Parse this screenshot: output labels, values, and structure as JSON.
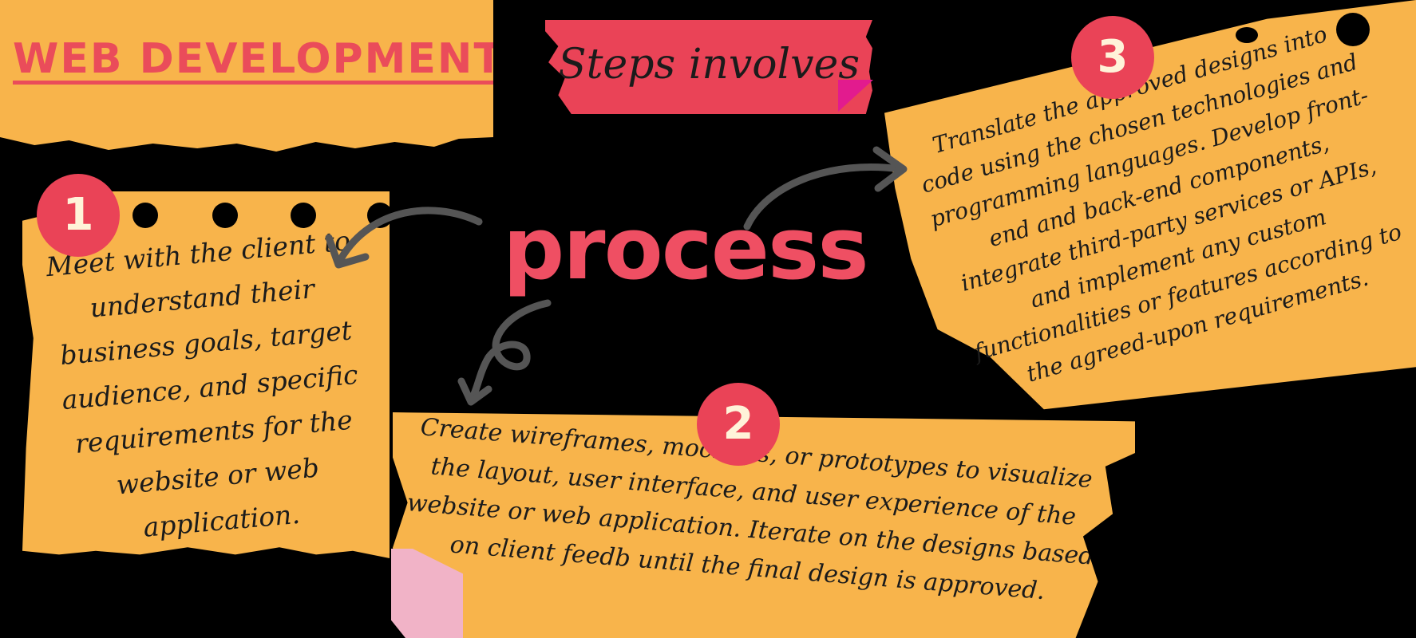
{
  "header": {
    "title": "WEB DEVELOPMENT"
  },
  "banner": {
    "text": "Steps involves"
  },
  "center": {
    "word": "process"
  },
  "steps": [
    {
      "number": "1",
      "text": "Meet with the client to understand their business goals, target audience, and specific requirements for the website or web application."
    },
    {
      "number": "2",
      "text": "Create wireframes, mockups, or prototypes to visualize the layout, user interface, and user experience of the website or web application. Iterate on the designs based on client feedb until the final design is approved."
    },
    {
      "number": "3",
      "text": "Translate the approved designs into code using the chosen technologies and programming languages. Develop front-end and back-end components, integrate third-party services or APIs, and implement any custom functionalities or features according to the agreed-upon requirements."
    }
  ],
  "colors": {
    "background": "#000000",
    "paper": "#f8b44b",
    "accent": "#ea4357",
    "magenta": "#e21b8e",
    "pink": "#f1b3c7",
    "arrow": "#555555"
  },
  "icons": [
    "arrow-to-step1-icon",
    "arrow-to-step2-icon",
    "arrow-to-step3-icon"
  ]
}
